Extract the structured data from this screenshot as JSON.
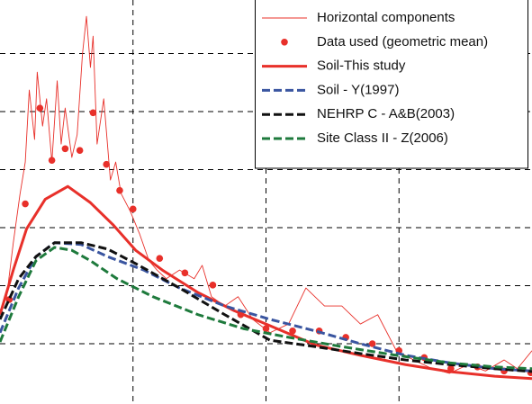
{
  "chart_data": {
    "type": "line",
    "xlim": [
      0,
      4
    ],
    "ylim": [
      0,
      7
    ],
    "xticks": [
      1,
      2,
      3
    ],
    "yticks": [
      1,
      2,
      3,
      4,
      5,
      6
    ],
    "grid": true,
    "legend": "upper right",
    "series": [
      {
        "name": "Horizontal components",
        "color": "#e8302a",
        "style": "thin",
        "x": [
          0,
          0.05,
          0.1,
          0.15,
          0.19,
          0.22,
          0.26,
          0.28,
          0.32,
          0.35,
          0.39,
          0.43,
          0.46,
          0.49,
          0.54,
          0.58,
          0.62,
          0.65,
          0.68,
          0.7,
          0.73,
          0.78,
          0.83,
          0.87,
          0.91,
          0.98,
          1.05,
          1.12,
          1.18,
          1.25,
          1.35,
          1.46,
          1.52,
          1.59,
          1.69,
          1.79,
          1.9,
          2.03,
          2.17,
          2.3,
          2.44,
          2.57,
          2.71,
          2.84,
          2.98,
          3.11,
          3.25,
          3.38,
          3.52,
          3.65,
          3.79,
          3.89,
          4.0
        ],
        "values": [
          1.57,
          1.81,
          2.74,
          3.57,
          4.13,
          5.37,
          4.52,
          5.68,
          4.75,
          5.22,
          4.13,
          5.53,
          4.44,
          5.06,
          4.21,
          4.6,
          5.99,
          6.64,
          5.76,
          6.3,
          4.44,
          5.22,
          3.82,
          4.13,
          3.59,
          3.28,
          2.89,
          2.43,
          2.27,
          2.12,
          2.27,
          2.12,
          2.35,
          1.81,
          1.65,
          1.81,
          1.42,
          1.19,
          1.34,
          1.96,
          1.65,
          1.65,
          1.34,
          1.5,
          0.88,
          0.72,
          0.57,
          0.49,
          0.64,
          0.53,
          0.72,
          0.57,
          0.88
        ]
      },
      {
        "name": "Data used (geometric mean)",
        "color": "#e8302a",
        "style": "dots",
        "x": [
          0.07,
          0.19,
          0.3,
          0.39,
          0.49,
          0.6,
          0.7,
          0.8,
          0.9,
          1.0,
          1.2,
          1.39,
          1.6,
          1.81,
          2.0,
          2.2,
          2.4,
          2.6,
          2.8,
          3.0,
          3.19,
          3.39,
          3.59,
          3.79,
          3.99
        ],
        "values": [
          1.76,
          3.41,
          5.06,
          4.16,
          4.36,
          4.33,
          4.98,
          4.09,
          3.64,
          3.32,
          2.47,
          2.22,
          2.01,
          1.5,
          1.26,
          1.22,
          1.22,
          1.11,
          1.0,
          0.88,
          0.76,
          0.57,
          0.6,
          0.53,
          0.5
        ]
      },
      {
        "name": "Soil-This study",
        "color": "#e8302a",
        "style": "solid",
        "x": [
          0,
          0.1,
          0.2,
          0.34,
          0.51,
          0.68,
          0.85,
          1.02,
          1.22,
          1.49,
          1.76,
          2.03,
          2.37,
          2.71,
          3.05,
          3.38,
          3.72,
          4.0
        ],
        "values": [
          1.5,
          2.27,
          2.98,
          3.49,
          3.71,
          3.43,
          3.05,
          2.61,
          2.27,
          1.88,
          1.57,
          1.31,
          0.98,
          0.8,
          0.64,
          0.52,
          0.44,
          0.4
        ]
      },
      {
        "name": "Soil - Y(1997)",
        "color": "#3a55a0",
        "style": "dashed",
        "x": [
          0,
          0.14,
          0.27,
          0.41,
          0.61,
          0.81,
          1.08,
          1.35,
          1.69,
          2.03,
          2.37,
          2.71,
          3.05,
          3.38,
          3.72,
          4.0
        ],
        "values": [
          1.19,
          1.96,
          2.5,
          2.74,
          2.71,
          2.5,
          2.27,
          1.96,
          1.65,
          1.42,
          1.22,
          1.0,
          0.8,
          0.67,
          0.57,
          0.53
        ]
      },
      {
        "name": "NEHRP C - A&B(2003)",
        "color": "#111111",
        "style": "dashed",
        "x": [
          0,
          0.14,
          0.27,
          0.41,
          0.61,
          0.81,
          1.02,
          1.35,
          1.69,
          2.03,
          2.37,
          2.71,
          3.05,
          3.38,
          3.72,
          4.0
        ],
        "values": [
          1.42,
          2.12,
          2.5,
          2.74,
          2.74,
          2.63,
          2.38,
          1.96,
          1.5,
          1.06,
          0.95,
          0.83,
          0.72,
          0.64,
          0.57,
          0.52
        ]
      },
      {
        "name": "Site Class II - Z(2006)",
        "color": "#1e7a3c",
        "style": "dashed",
        "x": [
          0,
          0.14,
          0.27,
          0.41,
          0.54,
          0.68,
          0.88,
          1.15,
          1.49,
          1.83,
          2.17,
          2.57,
          2.98,
          3.38,
          3.72,
          4.0
        ],
        "values": [
          1.03,
          1.81,
          2.43,
          2.66,
          2.61,
          2.43,
          2.12,
          1.81,
          1.5,
          1.26,
          1.11,
          0.95,
          0.8,
          0.67,
          0.6,
          0.57
        ]
      }
    ]
  }
}
